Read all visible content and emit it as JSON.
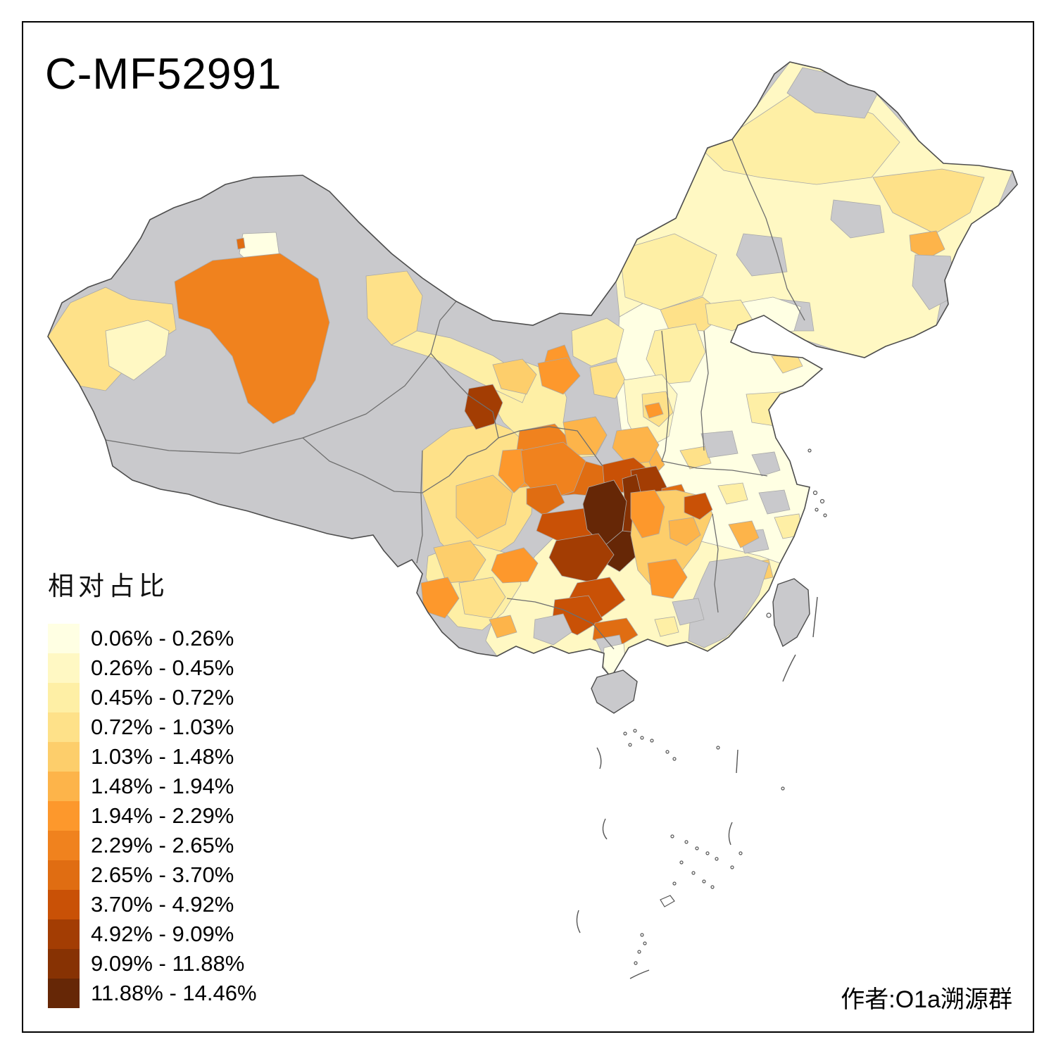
{
  "title": "C-MF52991",
  "attribution": "作者:O1a溯源群",
  "legend": {
    "title": "相对占比",
    "classes": [
      {
        "label": "0.06% - 0.26%",
        "color": "#FFFFE3"
      },
      {
        "label": "0.26% - 0.45%",
        "color": "#FFF8C3"
      },
      {
        "label": "0.45% - 0.72%",
        "color": "#FEEFA5"
      },
      {
        "label": "0.72% - 1.03%",
        "color": "#FEE189"
      },
      {
        "label": "1.03% - 1.48%",
        "color": "#FDCE6B"
      },
      {
        "label": "1.48% - 1.94%",
        "color": "#FDB44A"
      },
      {
        "label": "1.94% - 2.29%",
        "color": "#FD982C"
      },
      {
        "label": "2.29% - 2.65%",
        "color": "#F0821E"
      },
      {
        "label": "2.65% - 3.70%",
        "color": "#E06D12"
      },
      {
        "label": "3.70% - 4.92%",
        "color": "#C95106"
      },
      {
        "label": "4.92% - 9.09%",
        "color": "#A33D03"
      },
      {
        "label": "9.09% - 11.88%",
        "color": "#873203"
      },
      {
        "label": "11.88% - 14.46%",
        "color": "#662706"
      }
    ]
  },
  "map": {
    "no_data_color": "#C9C9CC",
    "land_border_color": "#4D4D4D",
    "background": "#FFFFFF"
  },
  "chart_data": {
    "type": "choropleth",
    "title": "C-MF52991",
    "legend_title": "相对占比",
    "unit": "%",
    "bins": [
      [
        0.06,
        0.26
      ],
      [
        0.26,
        0.45
      ],
      [
        0.45,
        0.72
      ],
      [
        0.72,
        1.03
      ],
      [
        1.03,
        1.48
      ],
      [
        1.48,
        1.94
      ],
      [
        1.94,
        2.29
      ],
      [
        2.29,
        2.65
      ],
      [
        2.65,
        3.7
      ],
      [
        3.7,
        4.92
      ],
      [
        4.92,
        9.09
      ],
      [
        9.09,
        11.88
      ],
      [
        11.88,
        14.46
      ]
    ],
    "palette": [
      "#FFFFE3",
      "#FFF8C3",
      "#FEEFA5",
      "#FEE189",
      "#FDCE6B",
      "#FDB44A",
      "#FD982C",
      "#F0821E",
      "#E06D12",
      "#C95106",
      "#A33D03",
      "#873203",
      "#662706"
    ],
    "no_data_color": "#C9C9CC",
    "legend_position": "bottom-left"
  }
}
